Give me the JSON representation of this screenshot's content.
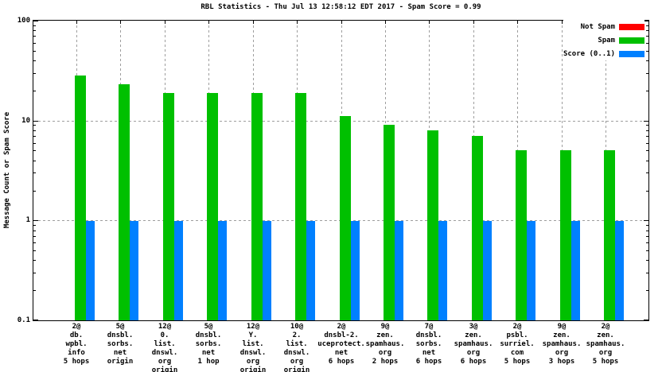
{
  "chart_data": {
    "type": "bar",
    "title": "RBL Statistics - Thu Jul 13 12:58:12 EDT 2017 - Spam Score = 0.99",
    "ylabel": "Message Count or Spam Score",
    "xlabel": "",
    "yscale": "log",
    "ylim": [
      0.1,
      100
    ],
    "yticks": [
      0.1,
      1,
      10,
      100
    ],
    "ytick_labels": [
      "0.1",
      "1",
      "10",
      "100"
    ],
    "grid": true,
    "grid_color": "#9e9e9e",
    "legend_position": "top-right",
    "spam_score": 0.99,
    "categories": [
      [
        "2@",
        "db.",
        "wpbl.",
        "info",
        "5 hops"
      ],
      [
        "5@",
        "dnsbl.",
        "sorbs.",
        "net",
        "origin"
      ],
      [
        "12@",
        "0.",
        "list.",
        "dnswl.",
        "org",
        "origin"
      ],
      [
        "5@",
        "dnsbl.",
        "sorbs.",
        "net",
        "1 hop"
      ],
      [
        "12@",
        "Y.",
        "list.",
        "dnswl.",
        "org",
        "origin"
      ],
      [
        "10@",
        "2.",
        "list.",
        "dnswl.",
        "org",
        "origin"
      ],
      [
        "2@",
        "dnsbl-2.",
        "uceprotect.",
        "net",
        "6 hops"
      ],
      [
        "9@",
        "zen.",
        "spamhaus.",
        "org",
        "2 hops"
      ],
      [
        "7@",
        "dnsbl.",
        "sorbs.",
        "net",
        "6 hops"
      ],
      [
        "3@",
        "zen.",
        "spamhaus.",
        "org",
        "6 hops"
      ],
      [
        "2@",
        "psbl.",
        "surriel.",
        "com",
        "5 hops"
      ],
      [
        "9@",
        "zen.",
        "spamhaus.",
        "org",
        "3 hops"
      ],
      [
        "2@",
        "zen.",
        "spamhaus.",
        "org",
        "5 hops"
      ]
    ],
    "series": [
      {
        "name": "Not Spam",
        "color": "#ff0000",
        "values": [
          0,
          0,
          0,
          0,
          0,
          0,
          0,
          0,
          0,
          0,
          0,
          0,
          0
        ]
      },
      {
        "name": "Spam",
        "color": "#00c000",
        "values": [
          28,
          23,
          19,
          19,
          19,
          19,
          11,
          9,
          8,
          7,
          5,
          5,
          5
        ]
      },
      {
        "name": "Score (0..1)",
        "color": "#0080ff",
        "values": [
          0.99,
          0.99,
          0.99,
          0.99,
          0.99,
          0.99,
          0.99,
          0.99,
          0.99,
          0.99,
          0.99,
          0.99,
          0.99
        ]
      }
    ]
  }
}
